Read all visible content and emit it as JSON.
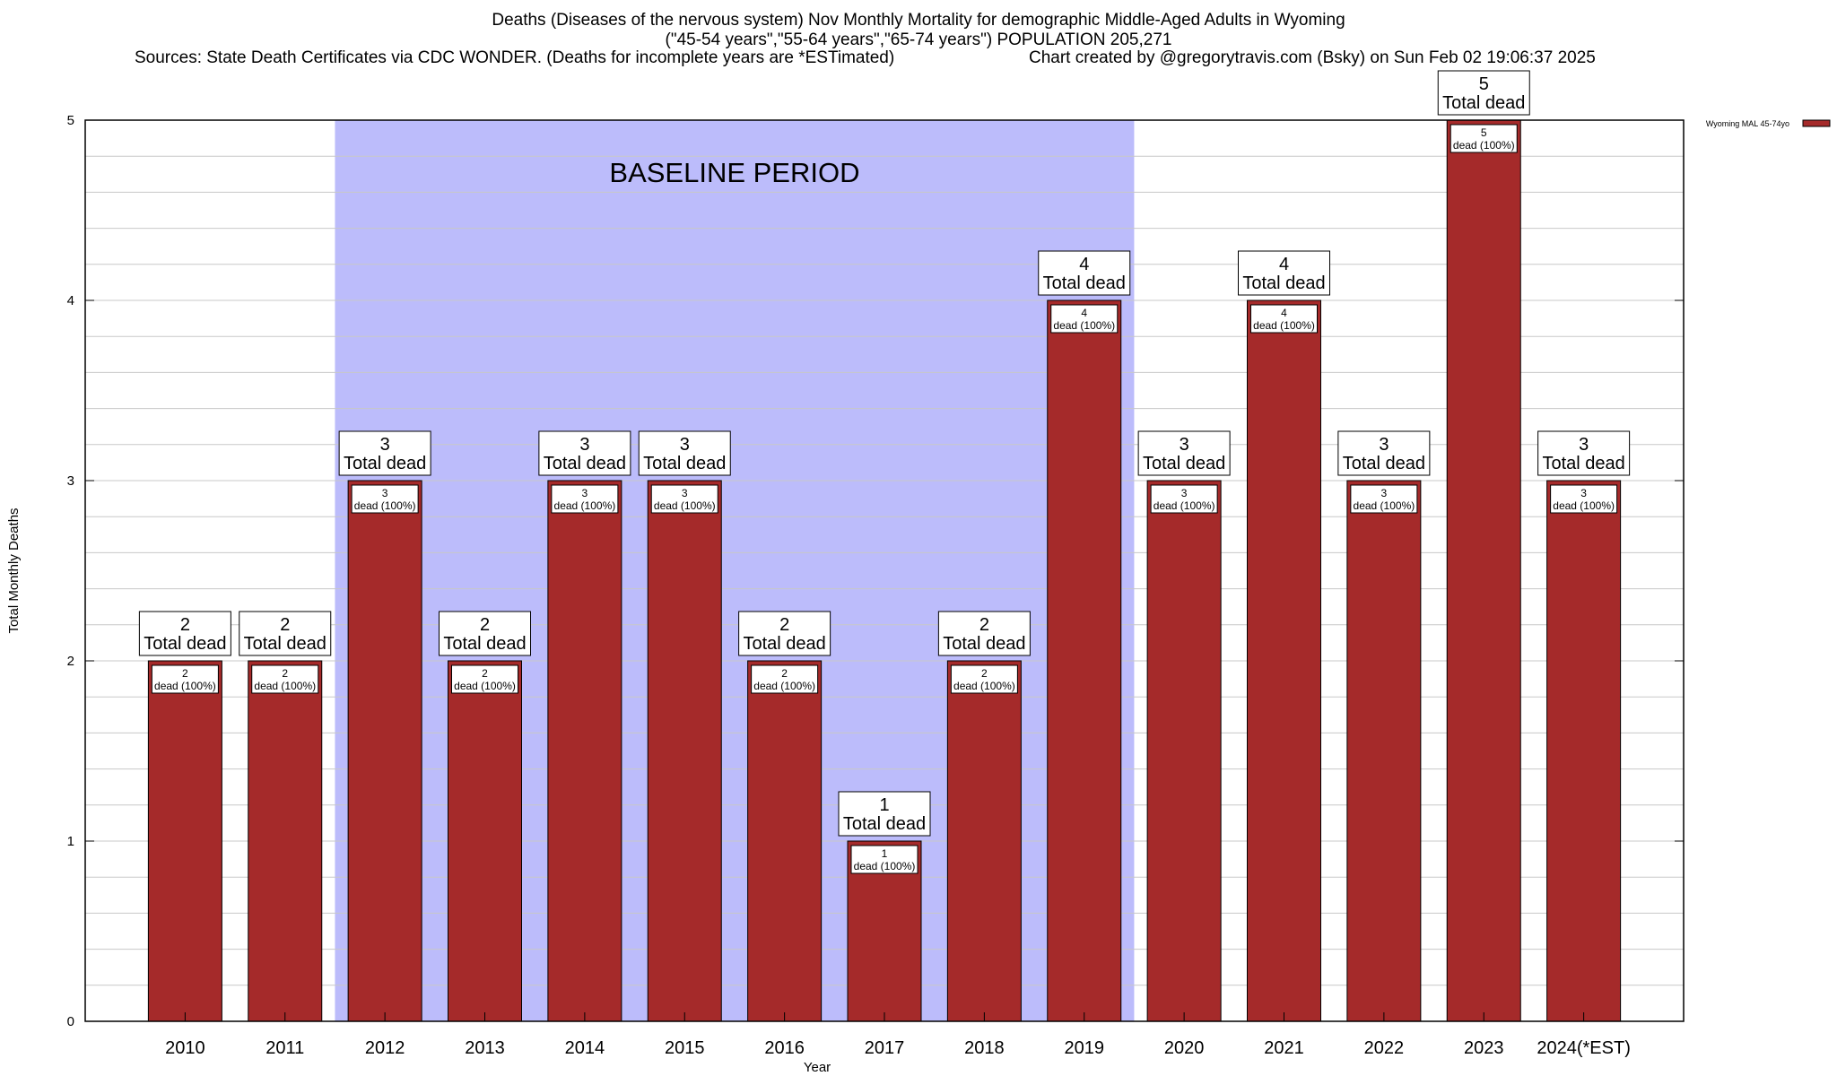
{
  "header": {
    "title_line1": "Deaths (Diseases of the nervous system) Nov Monthly Mortality for demographic Middle-Aged Adults in Wyoming",
    "title_line2": "(\"45-54 years\",\"55-64 years\",\"65-74 years\") POPULATION 205,271",
    "sources": "Sources: State Death Certificates via CDC WONDER. (Deaths for incomplete years are *ESTimated)",
    "credit": "Chart created by @gregorytravis.com (Bsky) on Sun Feb 02 19:06:37 2025"
  },
  "chart_data": {
    "type": "bar",
    "xlabel": "Year",
    "ylabel": "Total Monthly Deaths",
    "ylim": [
      0,
      5
    ],
    "yticks": [
      "0",
      "1",
      "2",
      "3",
      "4",
      "5"
    ],
    "minor_grid_step": 0.2,
    "grid": true,
    "categories": [
      "2010",
      "2011",
      "2012",
      "2013",
      "2014",
      "2015",
      "2016",
      "2017",
      "2018",
      "2019",
      "2020",
      "2021",
      "2022",
      "2023",
      "2024(*EST)"
    ],
    "series": [
      {
        "name": "Wyoming MAL 45-74yo",
        "color": "#a52a2a",
        "values": [
          2,
          2,
          3,
          2,
          3,
          3,
          2,
          1,
          2,
          4,
          3,
          4,
          3,
          5,
          3
        ]
      }
    ],
    "total_label_suffix": "Total dead",
    "inner_labels": [
      {
        "num": "2",
        "text": "dead (100%)"
      },
      {
        "num": "2",
        "text": "dead (100%)"
      },
      {
        "num": "3",
        "text": "dead (100%)"
      },
      {
        "num": "2",
        "text": "dead (100%)"
      },
      {
        "num": "3",
        "text": "dead (100%)"
      },
      {
        "num": "3",
        "text": "dead (100%)"
      },
      {
        "num": "2",
        "text": "dead (100%)"
      },
      {
        "num": "1",
        "text": "dead (100%)"
      },
      {
        "num": "2",
        "text": "dead (100%)"
      },
      {
        "num": "4",
        "text": "dead (100%)"
      },
      {
        "num": "3",
        "text": "dead (100%)"
      },
      {
        "num": "4",
        "text": "dead (100%)"
      },
      {
        "num": "3",
        "text": "dead (100%)"
      },
      {
        "num": "5",
        "text": "dead (100%)"
      },
      {
        "num": "3",
        "text": "dead (100%)"
      }
    ],
    "baseline": {
      "label": "BASELINE PERIOD",
      "from": "2012",
      "to": "2019",
      "color": "#bcbcfb"
    },
    "legend": {
      "placement": "top-right",
      "label": "Wyoming MAL 45-74yo"
    }
  }
}
